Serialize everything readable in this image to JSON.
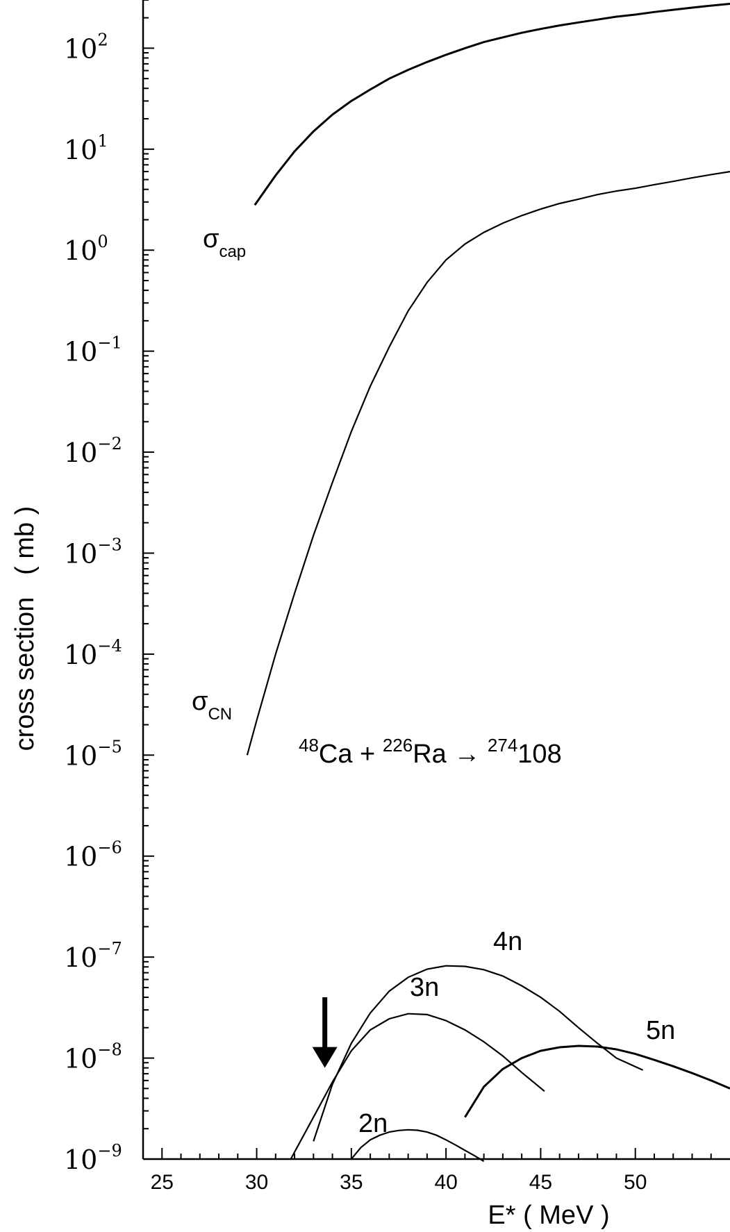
{
  "chart_data": {
    "type": "line",
    "xlabel": "E* ( MeV )",
    "ylabel": "cross section   ( mb )",
    "y_scale": "log",
    "xlim": [
      24,
      55
    ],
    "ylim": [
      1e-09,
      300
    ],
    "x_ticks": [
      25,
      30,
      35,
      40,
      45,
      50
    ],
    "y_ticks": [
      {
        "mantissa": "10",
        "exponent": "2",
        "value": 100
      },
      {
        "mantissa": "10",
        "exponent": "1",
        "value": 10
      },
      {
        "mantissa": "10",
        "exponent": "0",
        "value": 1
      },
      {
        "mantissa": "10",
        "exponent": "−1",
        "value": 0.1
      },
      {
        "mantissa": "10",
        "exponent": "−2",
        "value": 0.01
      },
      {
        "mantissa": "10",
        "exponent": "−3",
        "value": 0.001
      },
      {
        "mantissa": "10",
        "exponent": "−4",
        "value": 0.0001
      },
      {
        "mantissa": "10",
        "exponent": "−5",
        "value": 1e-05
      },
      {
        "mantissa": "10",
        "exponent": "−6",
        "value": 1e-06
      },
      {
        "mantissa": "10",
        "exponent": "−7",
        "value": 1e-07
      },
      {
        "mantissa": "10",
        "exponent": "−8",
        "value": 1e-08
      },
      {
        "mantissa": "10",
        "exponent": "−9",
        "value": 1e-09
      }
    ],
    "reaction": {
      "a_mass": "48",
      "a_sym": "Ca",
      "plus": " + ",
      "b_mass": "226",
      "b_sym": "Ra",
      "arrow": " → ",
      "c_mass": "274",
      "c_sym": "108"
    },
    "arrow_marker": {
      "x": 33.6,
      "y_tip": 8e-09,
      "y_tail": 4e-08
    },
    "series": [
      {
        "id": "cap",
        "label": "σ",
        "label_sub": "cap",
        "bold": true,
        "x": [
          29.9,
          31,
          32,
          33,
          34,
          35,
          36,
          37,
          38,
          39,
          40,
          41,
          42,
          43,
          44,
          45,
          46,
          47,
          48,
          49,
          50,
          51,
          52,
          53,
          54,
          55
        ],
        "y": [
          2.8,
          5.5,
          9.5,
          15,
          22,
          30,
          39,
          50,
          61,
          73,
          86,
          100,
          115,
          128,
          142,
          155,
          168,
          180,
          192,
          205,
          215,
          228,
          240,
          252,
          264,
          275
        ]
      },
      {
        "id": "cn",
        "label": "σ",
        "label_sub": "CN",
        "bold": false,
        "x": [
          29.5,
          30,
          31,
          32,
          33,
          34,
          35,
          36,
          37,
          38,
          39,
          40,
          41,
          42,
          43,
          44,
          45,
          46,
          47,
          48,
          49,
          50,
          51,
          52,
          53,
          54,
          55
        ],
        "y": [
          1e-05,
          2.2e-05,
          0.0001,
          0.0004,
          0.0015,
          0.005,
          0.016,
          0.045,
          0.11,
          0.25,
          0.48,
          0.8,
          1.15,
          1.5,
          1.85,
          2.2,
          2.55,
          2.9,
          3.2,
          3.55,
          3.85,
          4.1,
          4.45,
          4.8,
          5.2,
          5.6,
          6.0
        ]
      },
      {
        "id": "2n",
        "label": "2n",
        "bold": false,
        "x": [
          35.0,
          35.5,
          36,
          36.5,
          37,
          37.5,
          38,
          38.5,
          39,
          39.5,
          40,
          40.5,
          41,
          41.5,
          42
        ],
        "y": [
          1e-09,
          1.3e-09,
          1.55e-09,
          1.72e-09,
          1.85e-09,
          1.92e-09,
          1.95e-09,
          1.93e-09,
          1.85e-09,
          1.72e-09,
          1.55e-09,
          1.38e-09,
          1.22e-09,
          1.08e-09,
          9.5e-10
        ]
      },
      {
        "id": "3n",
        "label": "3n",
        "bold": false,
        "x": [
          31.8,
          33,
          34,
          35,
          36,
          37,
          38,
          39,
          40,
          41,
          42,
          43,
          44,
          45.2
        ],
        "y": [
          1e-09,
          2.6e-09,
          5.8e-09,
          1.18e-08,
          1.9e-08,
          2.45e-08,
          2.75e-08,
          2.7e-08,
          2.35e-08,
          1.9e-08,
          1.45e-08,
          1.05e-08,
          7.2e-09,
          4.7e-09
        ]
      },
      {
        "id": "4n",
        "label": "4n",
        "bold": false,
        "x": [
          33.0,
          34,
          35,
          36,
          37,
          38,
          39,
          40,
          41,
          42,
          43,
          44,
          45,
          46,
          47,
          48,
          49,
          50.4
        ],
        "y": [
          1.5e-09,
          5.5e-09,
          1.4e-08,
          2.8e-08,
          4.6e-08,
          6.3e-08,
          7.6e-08,
          8.2e-08,
          8.1e-08,
          7.5e-08,
          6.5e-08,
          5.2e-08,
          4e-08,
          2.9e-08,
          2e-08,
          1.4e-08,
          1e-08,
          7.6e-09
        ]
      },
      {
        "id": "5n",
        "label": "5n",
        "bold": true,
        "x": [
          41.0,
          42,
          43,
          44,
          45,
          46,
          47,
          48,
          49,
          50,
          51,
          52,
          53,
          54,
          55
        ],
        "y": [
          2.6e-09,
          5.2e-09,
          7.8e-09,
          1e-08,
          1.18e-08,
          1.28e-08,
          1.32e-08,
          1.3e-08,
          1.22e-08,
          1.1e-08,
          9.6e-09,
          8.3e-09,
          7.1e-09,
          6e-09,
          5e-09
        ]
      }
    ]
  }
}
